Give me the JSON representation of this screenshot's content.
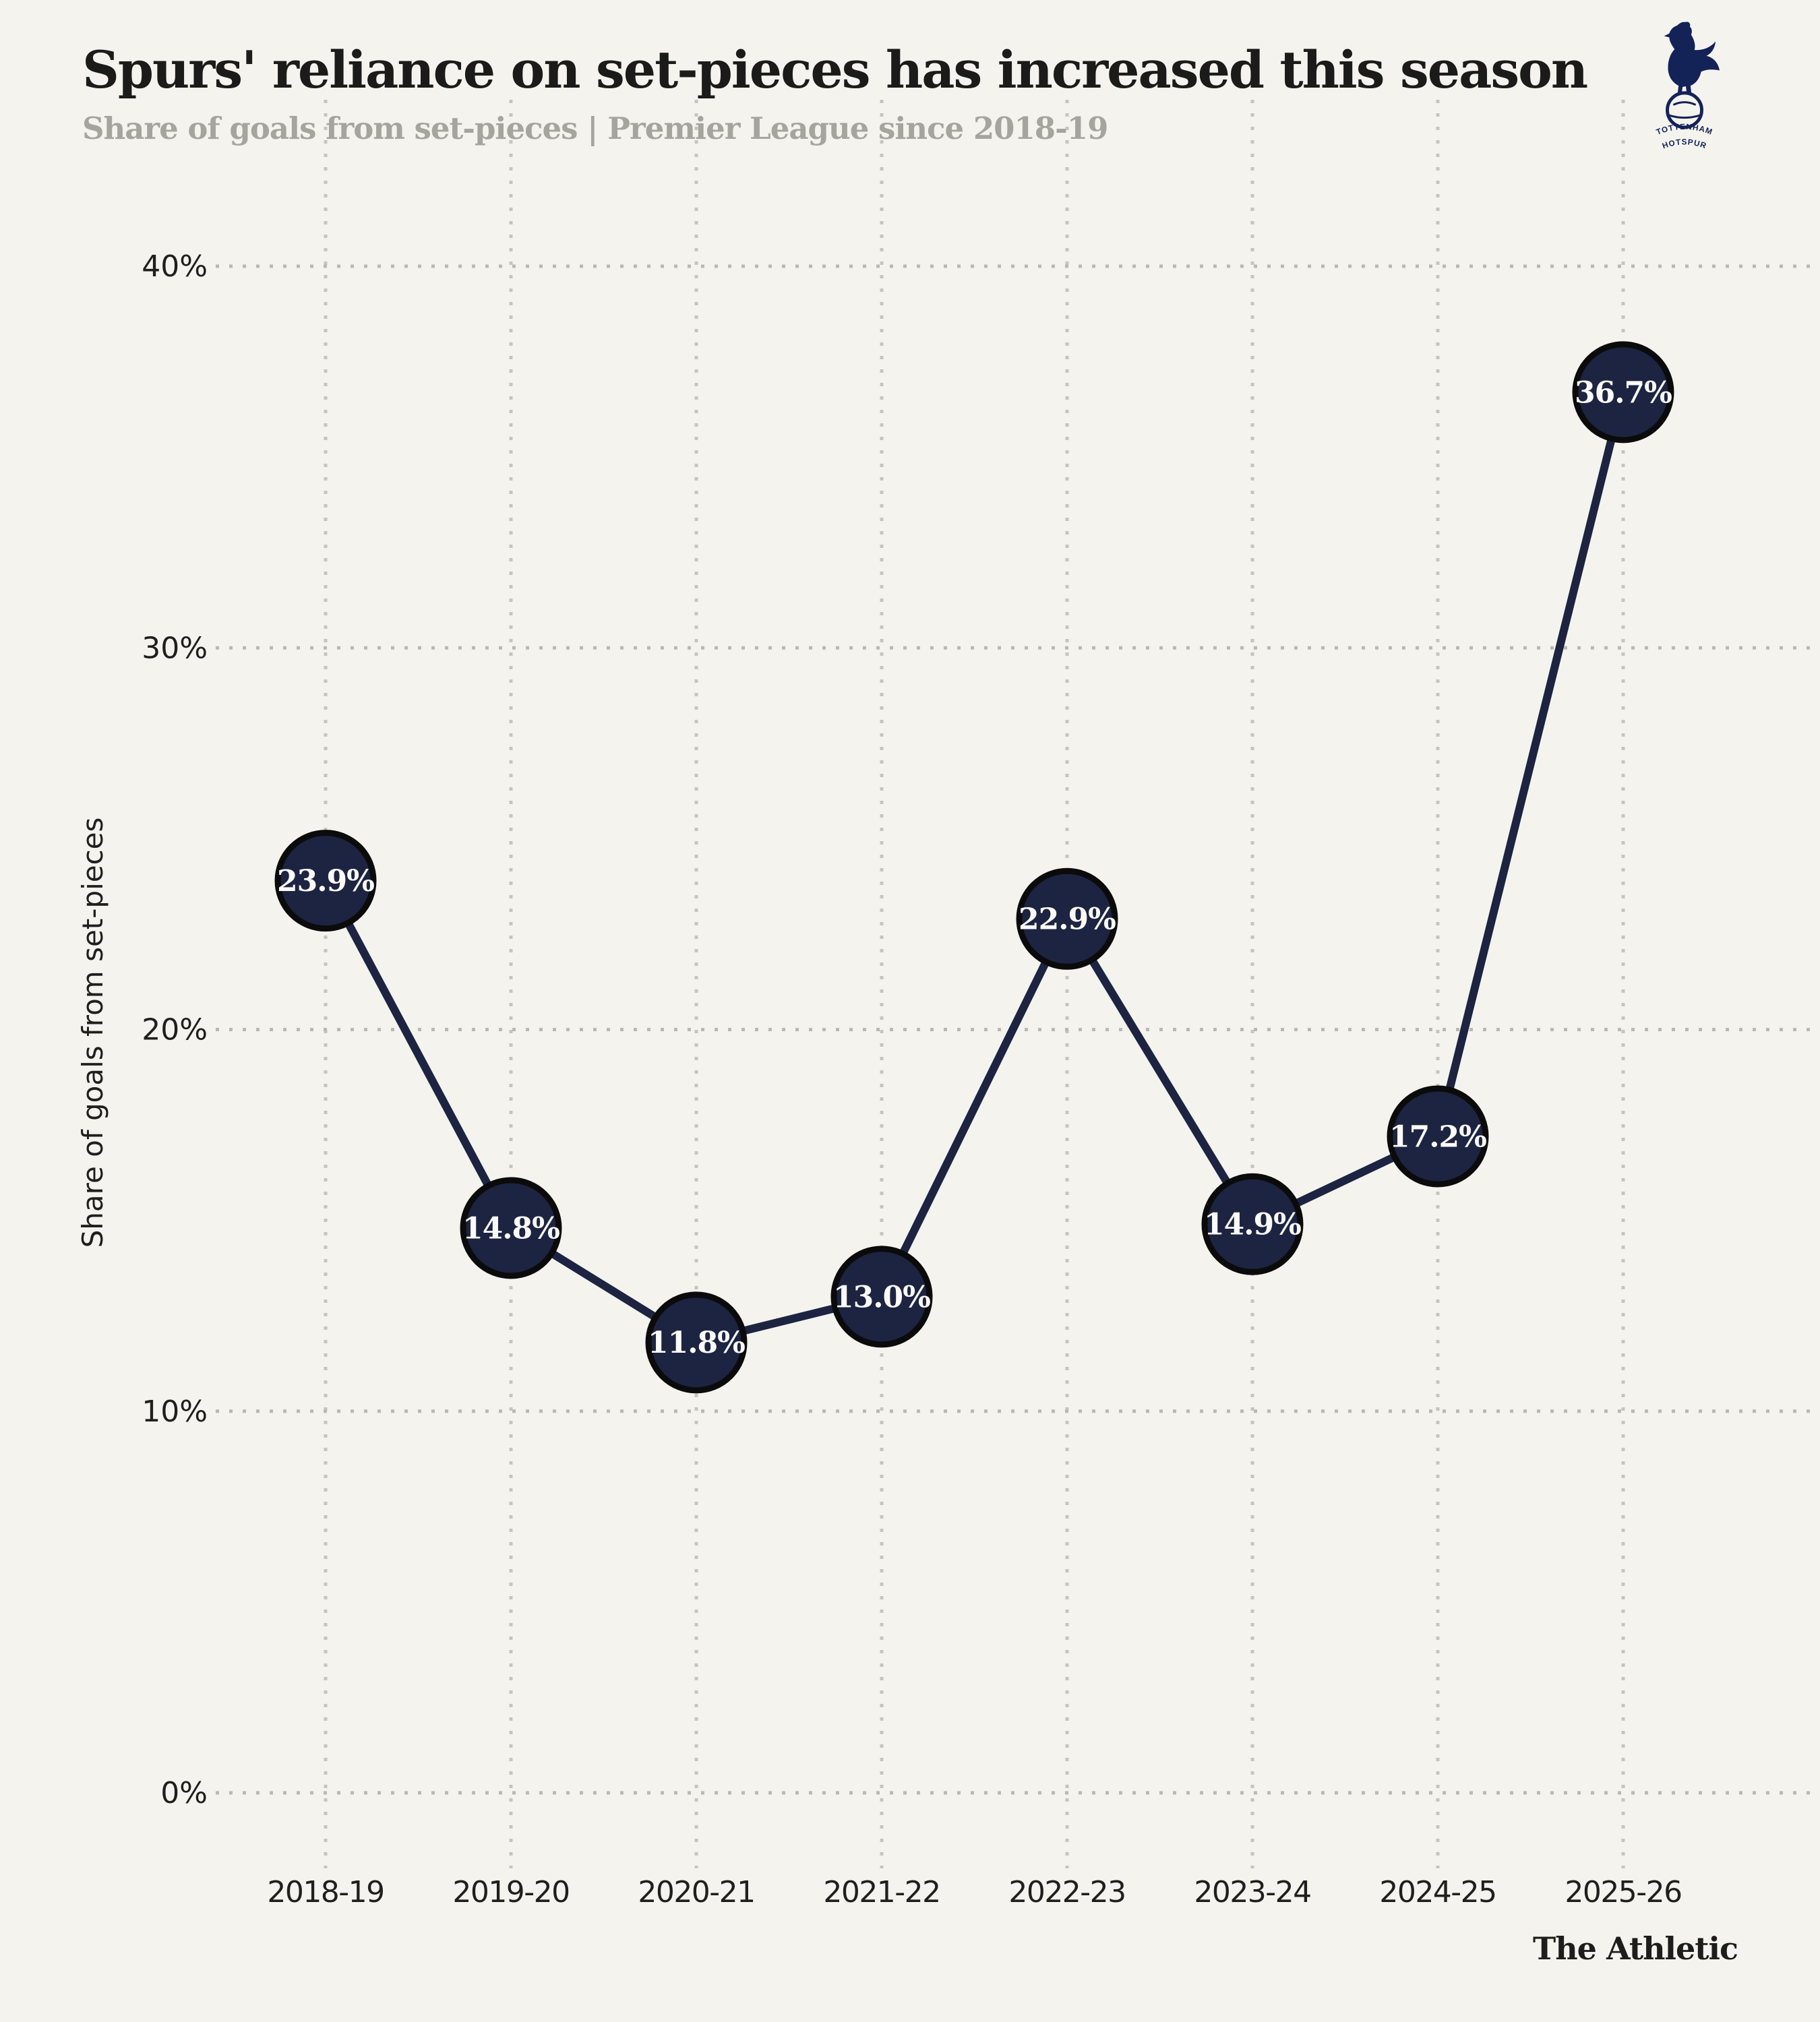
{
  "header": {
    "title": "Spurs' reliance on set-pieces has increased this season",
    "subtitle": "Share of goals from set-pieces | Premier League since 2018-19"
  },
  "branding": {
    "club_logo": "tottenham-hotspur-crest",
    "club_name_line1": "TOTTENHAM",
    "club_name_line2": "HOTSPUR",
    "attribution": "The Athletic"
  },
  "colors": {
    "background": "#f4f3ee",
    "navy_line": "#1d2442",
    "point_fill": "#1d2442",
    "point_ring": "#0b0b0c",
    "logo_navy": "#132257",
    "title_text": "#1b1b19",
    "subtitle_text": "#a5a49d",
    "axis_text": "#1f1f1d",
    "grid_dot_h": "#b9b8b2",
    "grid_dot_v": "#c5c4be",
    "value_text": "#fbfaf7"
  },
  "chart_data": {
    "type": "line",
    "title": "Spurs' reliance on set-pieces has increased this season",
    "subtitle": "Share of goals from set-pieces | Premier League since 2018-19",
    "categories": [
      "2018-19",
      "2019-20",
      "2020-21",
      "2021-22",
      "2022-23",
      "2023-24",
      "2024-25",
      "2025-26"
    ],
    "values": [
      23.9,
      14.8,
      11.8,
      13.0,
      22.9,
      14.9,
      17.2,
      36.7
    ],
    "value_labels": [
      "23.9%",
      "14.8%",
      "11.8%",
      "13.0%",
      "22.9%",
      "14.9%",
      "17.2%",
      "36.7%"
    ],
    "xlabel": "",
    "ylabel": "Share of goals from set-pieces",
    "ylim": [
      0,
      40
    ],
    "yticks": [
      0,
      10,
      20,
      30,
      40
    ],
    "ytick_labels": [
      "0%",
      "10%",
      "20%",
      "30%",
      "40%"
    ],
    "grid": "dotted-both-axes",
    "legend": "none",
    "marker": "large-filled-circle-with-percentage-label"
  }
}
